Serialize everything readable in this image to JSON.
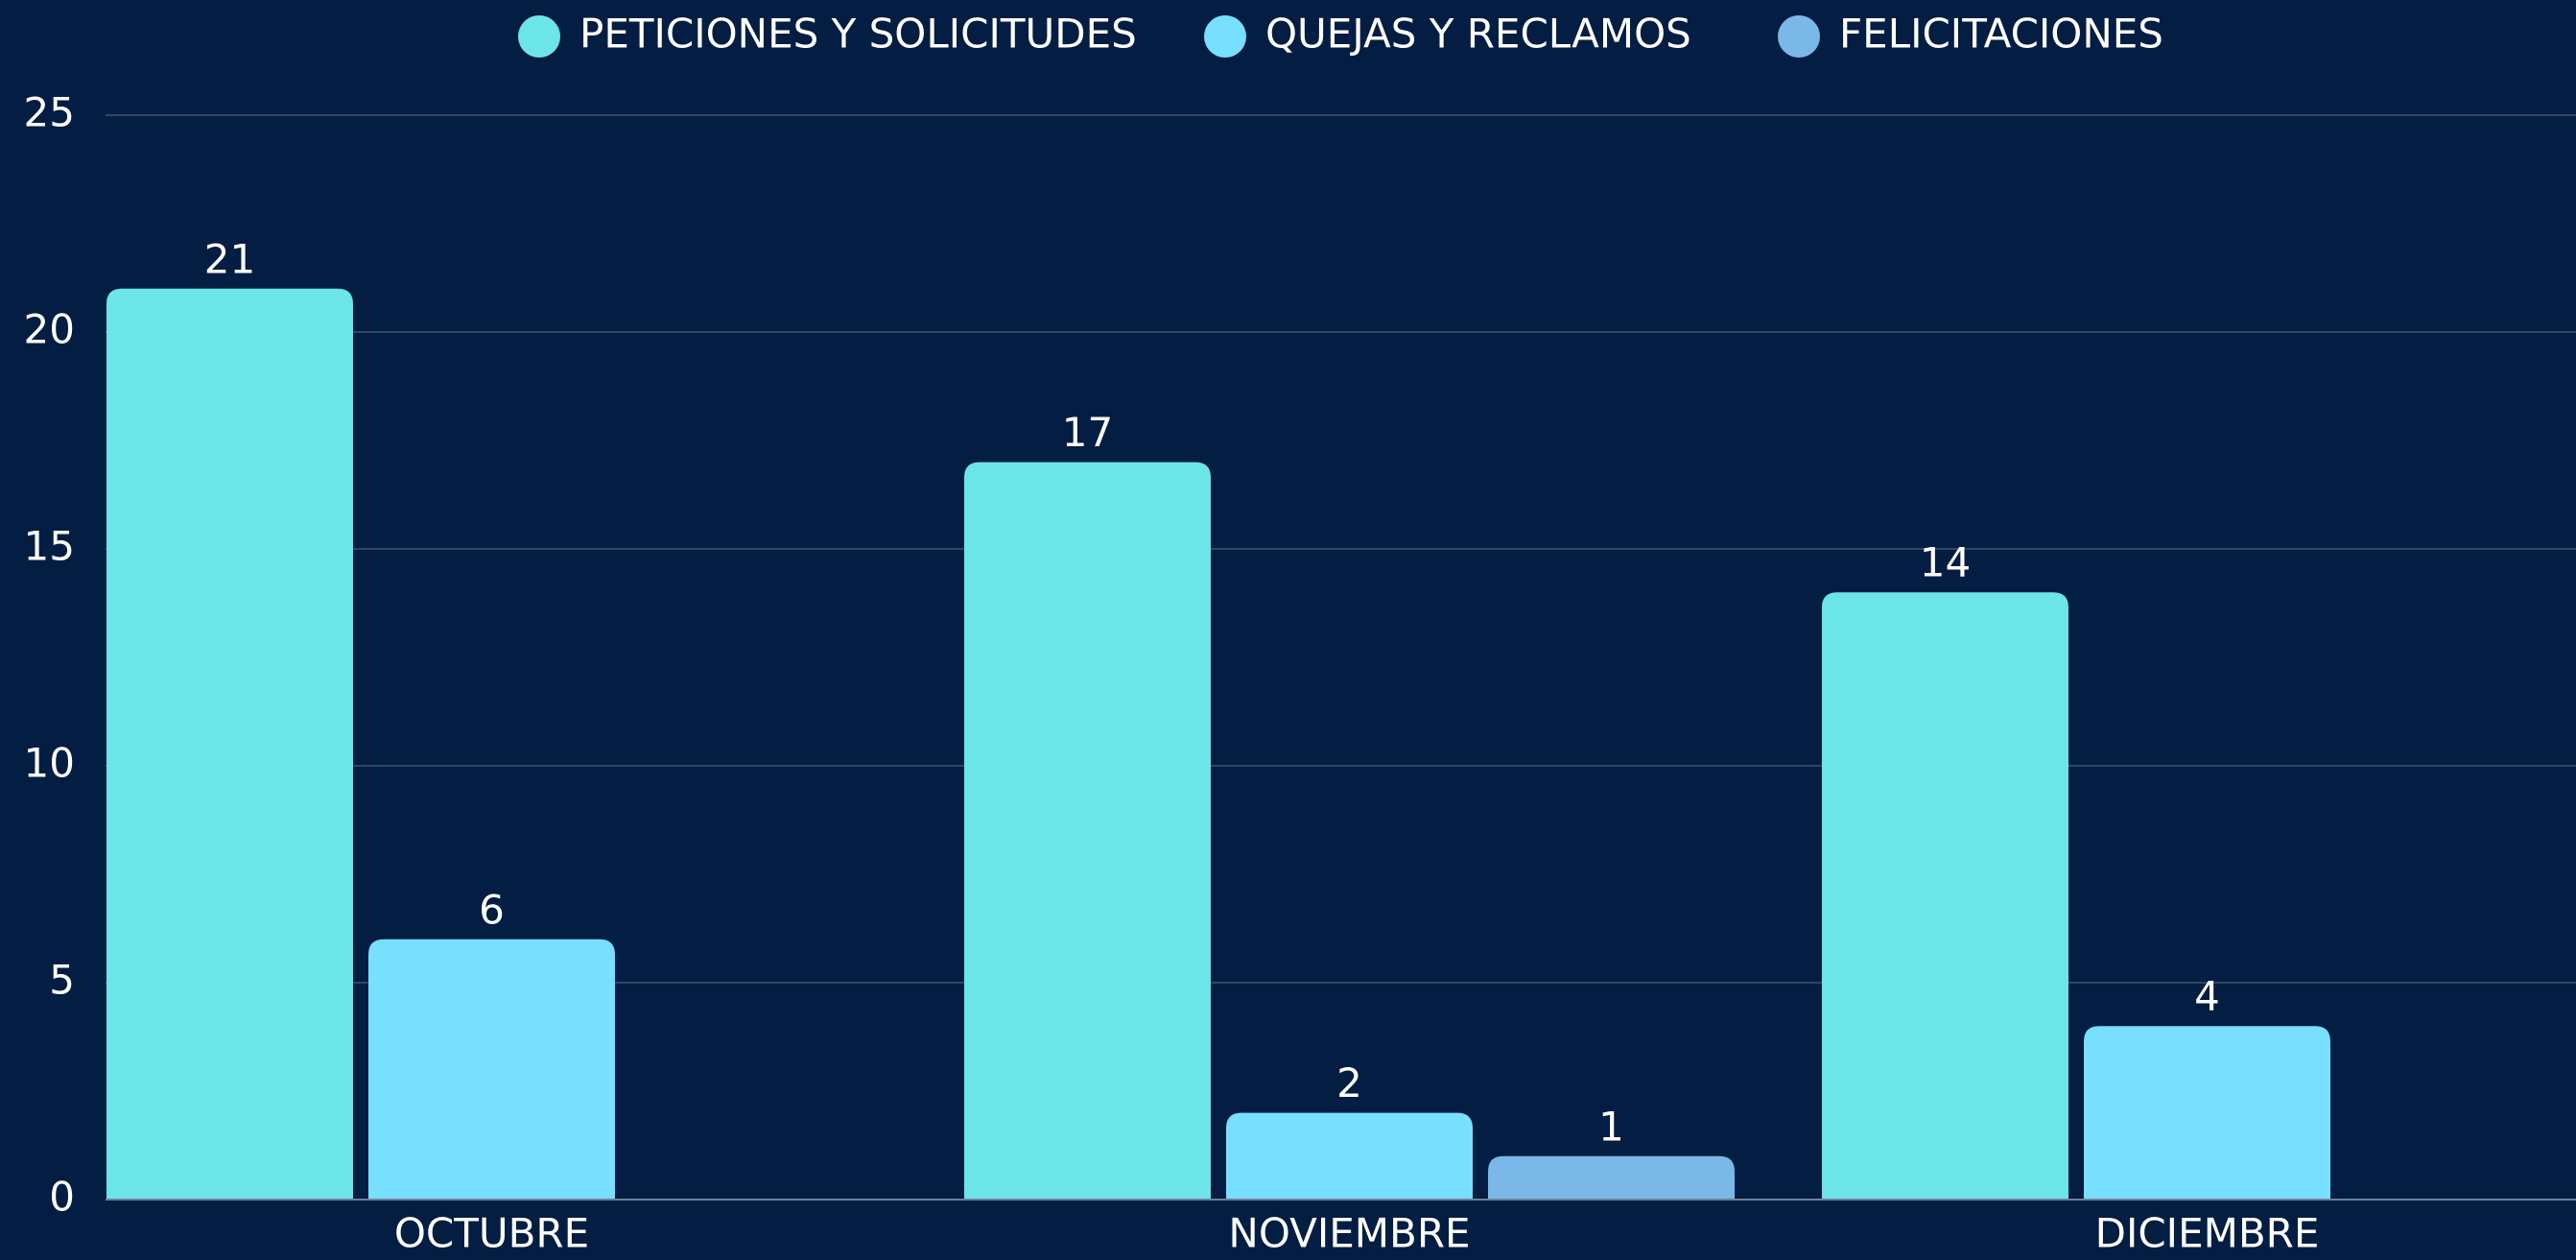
{
  "chart_data": {
    "type": "bar",
    "categories": [
      "OCTUBRE",
      "NOVIEMBRE",
      "DICIEMBRE"
    ],
    "series": [
      {
        "name": "PETICIONES Y SOLICITUDES",
        "color": "#6ce5e8",
        "values": [
          21,
          17,
          14
        ]
      },
      {
        "name": "QUEJAS Y RECLAMOS",
        "color": "#78dfff",
        "values": [
          6,
          2,
          4
        ]
      },
      {
        "name": "FELICITACIONES",
        "color": "#7ab8e8",
        "values": [
          null,
          1,
          null
        ]
      }
    ],
    "ylim": [
      0,
      25
    ],
    "yticks": [
      0,
      5,
      10,
      15,
      20,
      25
    ],
    "grid": true,
    "legend": "top"
  }
}
